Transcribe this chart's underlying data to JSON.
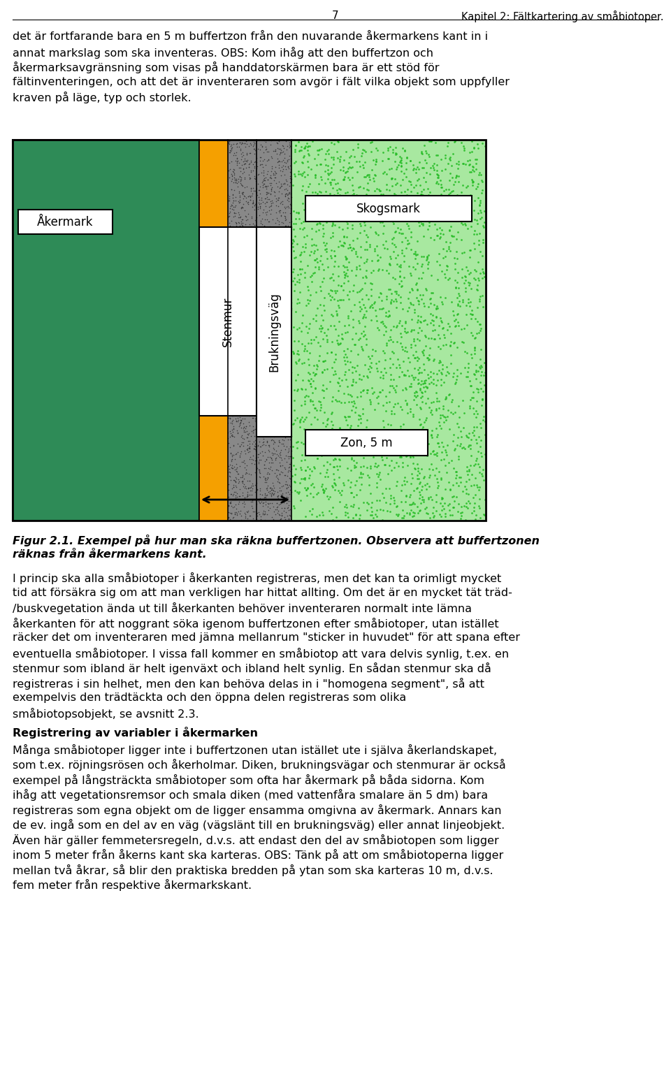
{
  "page_number": "7",
  "chapter_header": "Kapitel 2: Fältkartering av småbiotoper.",
  "body_text_top": "det är fortfarande bara en 5 m buffertzon från den nuvarande åkermarkens kant in i\nannat markslag som ska inventeras. OBS: Kom ihåg att den buffertzon och\nåkermarksavgränsning som visas på handdatorskärmen bara är ett stöd för\nfältinventeringen, och att det är inventeraren som avgör i fält vilka objekt som uppfyller\nkraven på läge, typ och storlek.",
  "figure_caption": "Figur 2.1. Exempel på hur man ska räkna buffertzonen. Observera att buffertzonen\nräknas från åkermarkens kant.",
  "body_text_bottom": "I princip ska alla småbiotoper i åkerkanten registreras, men det kan ta orimligt mycket\ntid att försäkra sig om att man verkligen har hittat allting. Om det är en mycket tät träd-\n/buskvegetation ända ut till åkerkanten behöver inventeraren normalt inte lämna\nåkerkanten för att noggrant söka igenom buffertzonen efter småbiotoper, utan istället\nräcker det om inventeraren med jämna mellanrum \"sticker in huvudet\" för att spana efter\neventuella småbiotoper. I vissa fall kommer en småbiotop att vara delvis synlig, t.ex. en\nstenmur som ibland är helt igenväxt och ibland helt synlig. En sådan stenmur ska då\nregistreras i sin helhet, men den kan behöva delas in i \"homogena segment\", så att\nexempelvis den trädtäckta och den öppna delen registreras som olika\nsmåbiotopsobjekt, se avsnitt 2.3.",
  "body_text_bold_heading": "Registrering av variabler i åkermarken",
  "body_text_after_heading": "Många småbiotoper ligger inte i buffertzonen utan istället ute i själva åkerlandskapet,\nsom t.ex. röjningsrösen och åkerholmar. Diken, brukningsvägar och stenmurar är också\nexempel på långsträckta småbiotoper som ofta har åkermark på båda sidorna. Kom\nihåg att vegetationsremsor och smala diken (med vattenfåra smalare än 5 dm) bara\nregistreras som egna objekt om de ligger ensamma omgivna av åkermark. Annars kan\nde ev. ingå som en del av en väg (vägslänt till en brukningsväg) eller annat linjeobjekt.\nÄven här gäller femmetersregeln, d.v.s. att endast den del av småbiotopen som ligger\ninom 5 meter från åkerns kant ska karteras. OBS: Tänk på att om småbiotoperna ligger\nmellan två åkrar, så blir den praktiska bredden på ytan som ska karteras 10 m, d.v.s.\nfem meter från respektive åkermarkskant.",
  "akermark_color": "#2e8b57",
  "orange_color": "#f5a000",
  "gray_dot_color": "#888888",
  "skogsmark_bg": "#a8e8a0",
  "skogsmark_dot": "#22bb22",
  "label_akermark": "Åkermark",
  "label_skogsmark": "Skogsmark",
  "label_stenmur": "Stenmur",
  "label_brukningsvag": "Brukningsväg",
  "label_zon": "Zon, 5 m",
  "text_fontsize": 11.5,
  "label_fontsize": 12,
  "header_fontsize": 11
}
